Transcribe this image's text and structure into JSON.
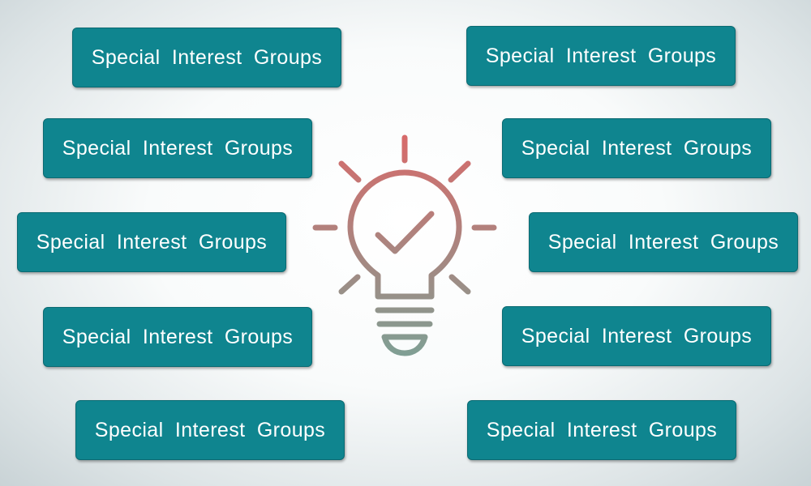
{
  "groups": {
    "left": [
      "Special Interest Groups",
      "Special Interest Groups",
      "Special Interest Groups",
      "Special Interest Groups",
      "Special Interest Groups"
    ],
    "right": [
      "Special Interest Groups",
      "Special Interest Groups",
      "Special Interest Groups",
      "Special Interest Groups",
      "Special Interest Groups"
    ]
  },
  "colors": {
    "chip_fill": "#0f858f",
    "bulb_top": "#d86a6a",
    "bulb_bottom": "#7f9f94"
  },
  "icon": "lightbulb-check-icon"
}
